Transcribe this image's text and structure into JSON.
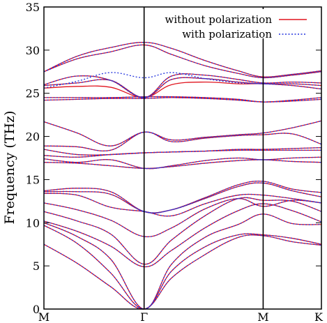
{
  "chart_data": {
    "type": "line",
    "ylabel": "Frequency (THz)",
    "xlabel": "",
    "ylim": [
      0,
      35
    ],
    "xlim": [
      0,
      1
    ],
    "grid": false,
    "legend_position": "top-right",
    "y_ticks": [
      0,
      5,
      10,
      15,
      20,
      25,
      30,
      35
    ],
    "x_ticks": [
      {
        "label": "M",
        "pos": 0.0
      },
      {
        "label": "Γ",
        "pos": 0.361
      },
      {
        "label": "M",
        "pos": 0.79
      },
      {
        "label": "K",
        "pos": 1.0
      }
    ],
    "x_separators": [
      0.361,
      0.79
    ],
    "series": [
      {
        "name": "without polarization",
        "color": "#e0141e",
        "dash": "solid"
      },
      {
        "name": "with polarization",
        "color": "#2233dd",
        "dash": "dotted"
      }
    ],
    "bands": [
      {
        "y": [
          7.5,
          5.3,
          2.6,
          0.0,
          3.6,
          6.3,
          8.3,
          8.5,
          7.8,
          7.4
        ]
      },
      {
        "y": [
          9.7,
          7.6,
          4.2,
          0.0,
          4.4,
          7.2,
          8.6,
          8.6,
          8.2,
          7.5
        ]
      },
      {
        "y": [
          10.0,
          8.4,
          5.8,
          0.0,
          5.2,
          8.3,
          9.8,
          11.0,
          9.9,
          9.8
        ]
      },
      {
        "y": [
          10.2,
          9.0,
          7.3,
          4.9,
          6.8,
          9.4,
          11.4,
          12.2,
          11.4,
          10.1
        ]
      },
      {
        "y": [
          11.3,
          10.2,
          8.7,
          5.2,
          8.0,
          10.8,
          12.8,
          12.6,
          12.5,
          11.3
        ]
      },
      {
        "y": [
          12.3,
          11.5,
          10.3,
          8.4,
          9.4,
          11.6,
          12.8,
          11.9,
          12.6,
          12.3
        ]
      },
      {
        "y": [
          13.4,
          13.2,
          11.8,
          11.3,
          10.8,
          12.2,
          13.2,
          13.2,
          12.8,
          12.3
        ]
      },
      {
        "y": [
          13.6,
          13.6,
          13.3,
          11.3,
          11.5,
          12.8,
          14.2,
          14.6,
          13.7,
          13.0
        ]
      },
      {
        "y": [
          13.7,
          14.0,
          13.6,
          11.3,
          11.5,
          12.9,
          14.4,
          14.8,
          13.9,
          13.5
        ]
      },
      {
        "y": [
          17.0,
          16.9,
          16.6,
          16.3,
          16.5,
          16.9,
          17.2,
          17.3,
          17.1,
          17.0
        ]
      },
      {
        "y": [
          17.4,
          17.0,
          17.3,
          16.3,
          16.6,
          17.2,
          17.5,
          17.3,
          17.5,
          17.6
        ]
      },
      {
        "y": [
          17.8,
          17.6,
          17.9,
          18.1,
          18.2,
          18.3,
          18.4,
          18.4,
          18.4,
          18.4
        ]
      },
      {
        "y": [
          18.5,
          17.9,
          17.9,
          18.1,
          18.2,
          18.3,
          18.5,
          18.5,
          18.6,
          18.7
        ]
      },
      {
        "y": [
          18.9,
          18.8,
          18.4,
          20.5,
          19.4,
          19.8,
          20.1,
          20.2,
          20.3,
          19.1
        ]
      },
      {
        "y": [
          21.7,
          20.4,
          18.9,
          20.5,
          19.6,
          19.9,
          20.2,
          20.4,
          21.0,
          21.8
        ]
      },
      {
        "y": [
          24.2,
          24.3,
          24.4,
          24.4,
          24.5,
          24.4,
          24.2,
          24.0,
          24.1,
          24.3
        ]
      },
      {
        "y": [
          24.5,
          24.5,
          24.5,
          24.6,
          24.6,
          24.5,
          24.3,
          24.0,
          24.2,
          24.5
        ]
      },
      {
        "y": [
          25.6,
          25.8,
          25.7,
          24.5,
          26.0,
          26.3,
          26.1,
          26.1,
          25.9,
          25.5
        ]
      },
      {
        "y": [
          25.9,
          26.2,
          26.5,
          24.5,
          26.6,
          26.7,
          26.3,
          26.1,
          26.1,
          25.9
        ]
      },
      {
        "y": [
          26.0,
          27.0,
          26.5,
          24.5,
          27.0,
          27.1,
          26.6,
          26.2,
          26.3,
          26.2
        ]
      },
      {
        "y": [
          27.5,
          29.0,
          29.8,
          30.6,
          29.5,
          28.2,
          27.3,
          26.8,
          27.1,
          27.5
        ]
      },
      {
        "y": [
          27.5,
          29.3,
          30.3,
          30.9,
          30.2,
          28.8,
          27.6,
          26.9,
          27.2,
          27.6
        ]
      }
    ],
    "polarization_offsets": {
      "band": 17,
      "y": [
        25.6,
        26.4,
        27.4,
        26.8,
        27.4,
        26.7,
        26.2,
        26.1,
        25.9,
        25.5
      ]
    }
  }
}
